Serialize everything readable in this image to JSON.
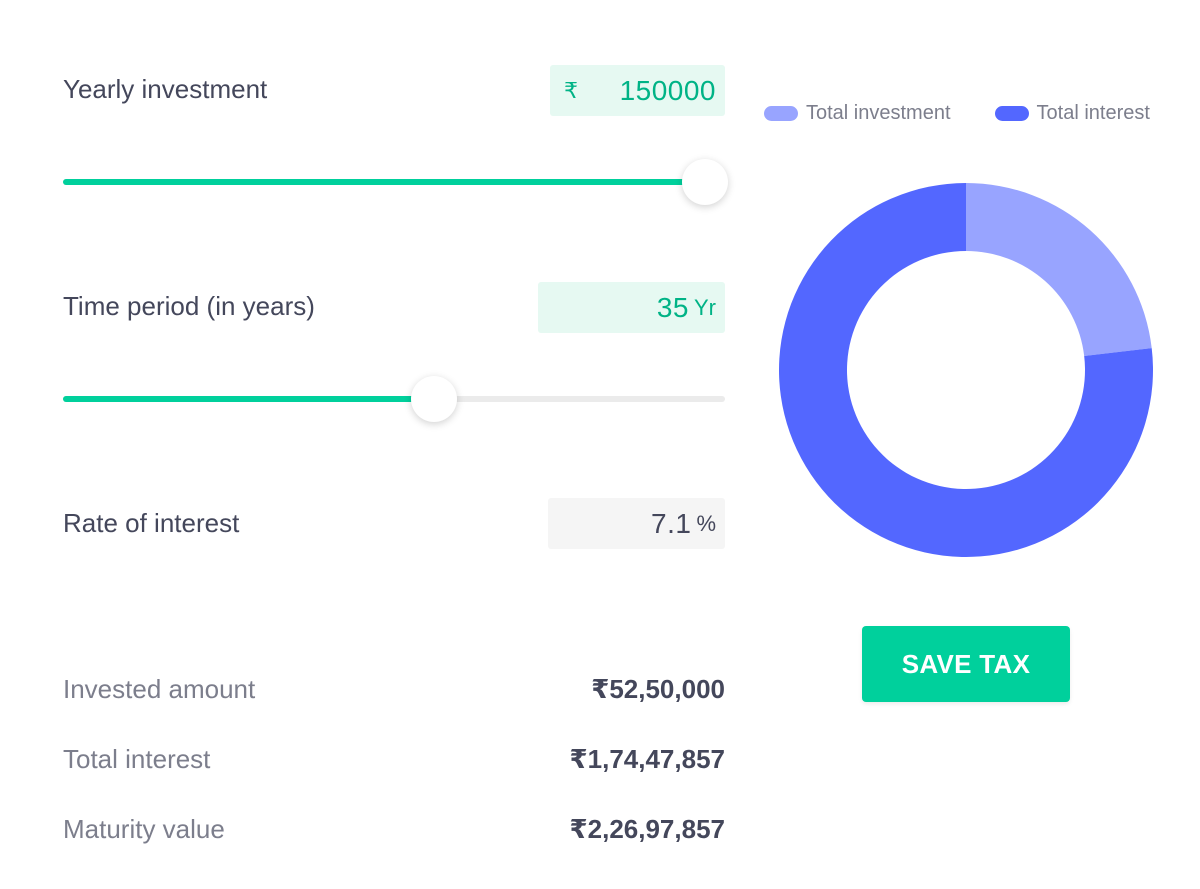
{
  "inputs": {
    "yearly_investment": {
      "label": "Yearly investment",
      "currency": "₹",
      "value": "150000",
      "slider_fraction": 0.97
    },
    "time_period": {
      "label": "Time period (in years)",
      "value": "35",
      "unit": "Yr",
      "slider_fraction": 0.56
    },
    "rate_of_interest": {
      "label": "Rate of interest",
      "value": "7.1",
      "unit": "%"
    }
  },
  "summary": {
    "invested_amount": {
      "label": "Invested amount",
      "value": "₹52,50,000"
    },
    "total_interest": {
      "label": "Total interest",
      "value": "₹1,74,47,857"
    },
    "maturity_value": {
      "label": "Maturity value",
      "value": "₹2,26,97,857"
    }
  },
  "legend": {
    "investment_label": "Total investment",
    "interest_label": "Total interest"
  },
  "chart_data": {
    "type": "pie",
    "variant": "donut",
    "categories": [
      "Total investment",
      "Total interest"
    ],
    "values": [
      5250000,
      17447857
    ],
    "colors": [
      "#98a4ff",
      "#5367ff"
    ],
    "legend_position": "top"
  },
  "actions": {
    "save_tax_label": "SAVE TAX"
  },
  "colors": {
    "accent": "#00d09c",
    "accent_text": "#00b386",
    "accent_bg": "#e6f9f2",
    "investment": "#98a4ff",
    "interest": "#5367ff"
  }
}
